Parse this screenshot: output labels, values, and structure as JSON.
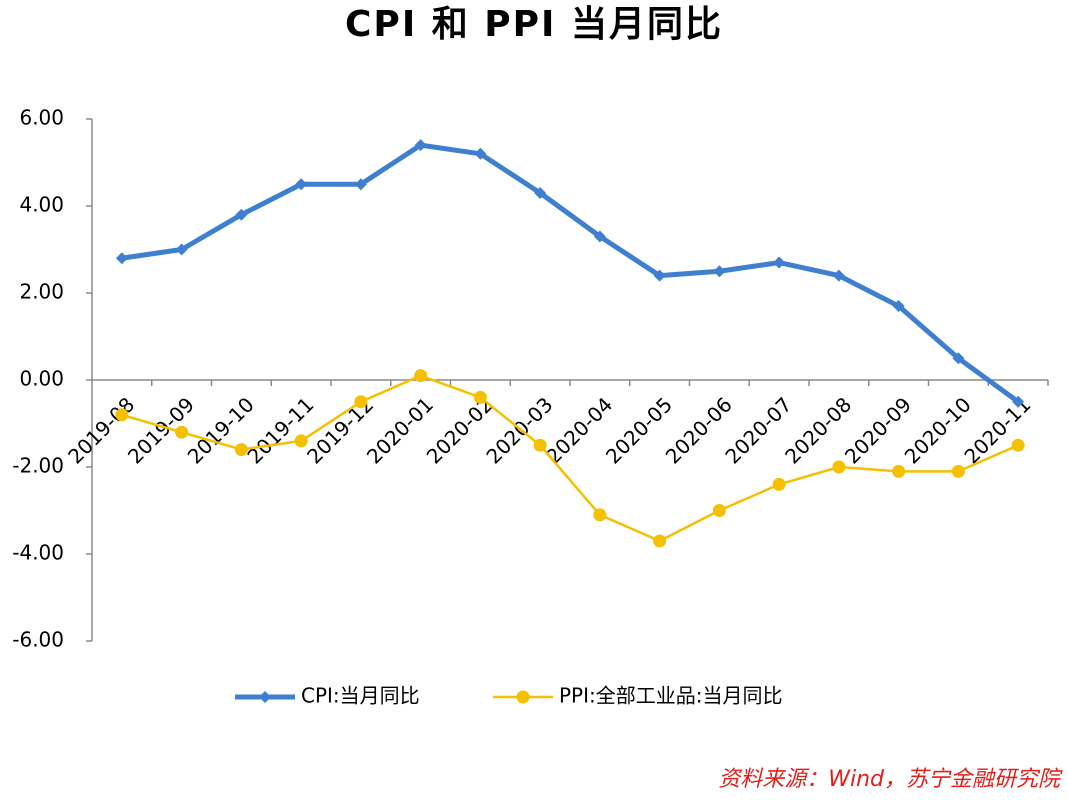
{
  "chart_data": {
    "type": "line",
    "title": "CPI 和 PPI 当月同比",
    "categories": [
      "2019-08",
      "2019-09",
      "2019-10",
      "2019-11",
      "2019-12",
      "2020-01",
      "2020-02",
      "2020-03",
      "2020-04",
      "2020-05",
      "2020-06",
      "2020-07",
      "2020-08",
      "2020-09",
      "2020-10",
      "2020-11"
    ],
    "series": [
      {
        "name": "CPI:当月同比",
        "color": "#3f7fcf",
        "marker": "diamond",
        "values": [
          2.8,
          3.0,
          3.8,
          4.5,
          4.5,
          5.4,
          5.2,
          4.3,
          3.3,
          2.4,
          2.5,
          2.7,
          2.4,
          1.7,
          0.5,
          -0.5
        ]
      },
      {
        "name": "PPI:全部工业品:当月同比",
        "color": "#f5c000",
        "marker": "circle",
        "values": [
          -0.8,
          -1.2,
          -1.6,
          -1.4,
          -0.5,
          0.1,
          -0.4,
          -1.5,
          -3.1,
          -3.7,
          -3.0,
          -2.4,
          -2.0,
          -2.1,
          -2.1,
          -1.5
        ]
      }
    ],
    "ylim": [
      -6,
      6
    ],
    "yticks": [
      {
        "value": -6,
        "label": "-6.00"
      },
      {
        "value": -4,
        "label": "-4.00"
      },
      {
        "value": -2,
        "label": "-2.00"
      },
      {
        "value": 0,
        "label": "0.00"
      },
      {
        "value": 2,
        "label": "2.00"
      },
      {
        "value": 4,
        "label": "4.00"
      },
      {
        "value": 6,
        "label": "6.00"
      }
    ],
    "grid": false,
    "legend": "bottom",
    "source": "资料来源：Wind，苏宁金融研究院"
  }
}
